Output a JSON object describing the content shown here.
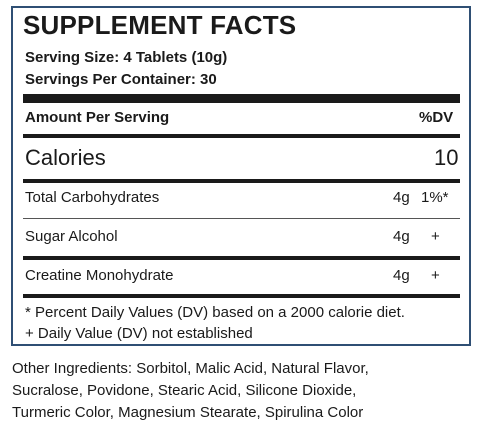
{
  "title": "SUPPLEMENT FACTS",
  "serving_size": "Serving Size: 4 Tablets (10g)",
  "servings_per_container": "Servings Per Container: 30",
  "header": {
    "amount_label": "Amount Per Serving",
    "dv_label": "%DV"
  },
  "calories": {
    "label": "Calories",
    "value": "10"
  },
  "rows": [
    {
      "label": "Total Carbohydrates",
      "amount": "4g",
      "dv": "1%*"
    },
    {
      "label": "Sugar Alcohol",
      "amount": "4g",
      "dv": "+"
    },
    {
      "label": "Creatine Monohydrate",
      "amount": "4g",
      "dv": "+"
    }
  ],
  "footnotes": [
    "* Percent Daily Values (DV) based on a 2000 calorie diet.",
    "+ Daily Value (DV) not established"
  ],
  "other_ingredients": [
    "Other Ingredients: Sorbitol, Malic Acid, Natural Flavor,",
    "Sucralose, Povidone, Stearic Acid, Silicone Dioxide,",
    "Turmeric Color, Magnesium Stearate, Spirulina Color"
  ]
}
